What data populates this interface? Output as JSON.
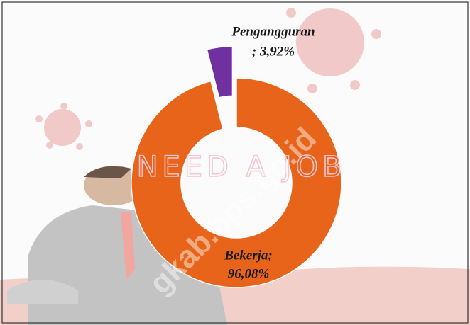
{
  "chart_data": {
    "type": "pie",
    "categories": [
      "Bekerja;",
      "Pengangguran"
    ],
    "values": [
      96.08,
      3.92
    ],
    "value_labels": [
      "96,08%",
      "; 3,92%"
    ],
    "colors": [
      "#e8641a",
      "#7030a0"
    ],
    "donut": true,
    "explode": [
      false,
      true
    ],
    "background_text": "NEED A JOB",
    "watermark": "gkab.bps.go.id"
  }
}
